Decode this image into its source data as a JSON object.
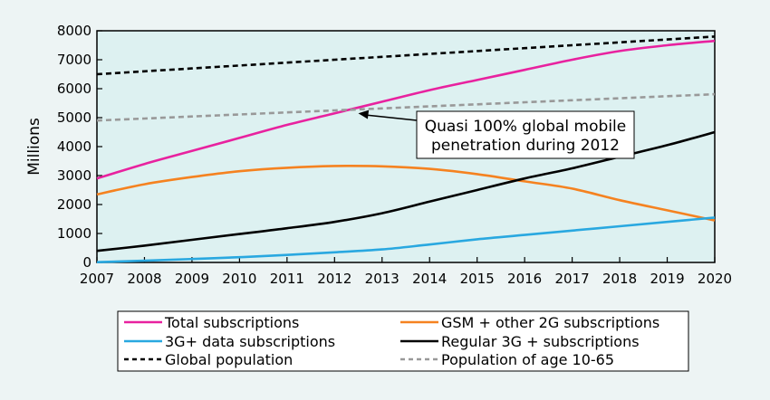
{
  "chart_data": {
    "type": "line",
    "ylabel": "Millions",
    "xlim": [
      2007,
      2020
    ],
    "ylim": [
      0,
      8000
    ],
    "x_ticks": [
      "2007",
      "2008",
      "2009",
      "2010",
      "2011",
      "2012",
      "2013",
      "2014",
      "2015",
      "2016",
      "2017",
      "2018",
      "2019",
      "2020"
    ],
    "y_ticks": [
      "0",
      "1000",
      "2000",
      "3000",
      "4000",
      "5000",
      "6000",
      "7000",
      "8000"
    ],
    "grid": false,
    "legend_placement": "bottom",
    "annotation": {
      "lines": [
        "Quasi 100% global mobile",
        "penetration during 2012"
      ],
      "target_x": 2012.5,
      "target_y": 5150
    },
    "series": [
      {
        "name": "Total subscriptions",
        "color": "#e8229f",
        "dash": "solid",
        "x": [
          2007,
          2008,
          2009,
          2010,
          2011,
          2012,
          2013,
          2014,
          2015,
          2016,
          2017,
          2018,
          2019,
          2020
        ],
        "values": [
          2900,
          3400,
          3850,
          4300,
          4750,
          5150,
          5550,
          5950,
          6300,
          6650,
          7000,
          7300,
          7500,
          7650
        ]
      },
      {
        "name": "GSM + other 2G subscriptions",
        "color": "#f58220",
        "dash": "solid",
        "x": [
          2007,
          2008,
          2009,
          2010,
          2011,
          2012,
          2013,
          2014,
          2015,
          2016,
          2017,
          2018,
          2019,
          2020
        ],
        "values": [
          2350,
          2700,
          2950,
          3150,
          3270,
          3330,
          3320,
          3230,
          3050,
          2800,
          2550,
          2150,
          1800,
          1450
        ]
      },
      {
        "name": "3G+ data subscriptions",
        "color": "#29a8e0",
        "dash": "solid",
        "x": [
          2007,
          2008,
          2009,
          2010,
          2011,
          2012,
          2013,
          2014,
          2015,
          2016,
          2017,
          2018,
          2019,
          2020
        ],
        "values": [
          10,
          60,
          120,
          180,
          260,
          350,
          450,
          620,
          800,
          950,
          1100,
          1250,
          1400,
          1550
        ]
      },
      {
        "name": "Regular 3G + subscriptions",
        "color": "#000000",
        "dash": "solid",
        "x": [
          2007,
          2008,
          2009,
          2010,
          2011,
          2012,
          2013,
          2014,
          2015,
          2016,
          2017,
          2018,
          2019,
          2020
        ],
        "values": [
          400,
          580,
          780,
          980,
          1180,
          1400,
          1700,
          2100,
          2500,
          2900,
          3250,
          3650,
          4050,
          4500
        ]
      },
      {
        "name": "Global population",
        "color": "#000000",
        "dash": "dashed",
        "x": [
          2007,
          2008,
          2009,
          2010,
          2011,
          2012,
          2013,
          2014,
          2015,
          2016,
          2017,
          2018,
          2019,
          2020
        ],
        "values": [
          6500,
          6600,
          6700,
          6800,
          6900,
          7000,
          7100,
          7200,
          7300,
          7400,
          7500,
          7600,
          7700,
          7800
        ]
      },
      {
        "name": "Population of age 10-65",
        "color": "#999999",
        "dash": "dashed",
        "x": [
          2007,
          2008,
          2009,
          2010,
          2011,
          2012,
          2013,
          2014,
          2015,
          2016,
          2017,
          2018,
          2019,
          2020
        ],
        "values": [
          4900,
          4970,
          5040,
          5110,
          5180,
          5250,
          5320,
          5390,
          5460,
          5530,
          5600,
          5670,
          5740,
          5810
        ]
      }
    ]
  }
}
